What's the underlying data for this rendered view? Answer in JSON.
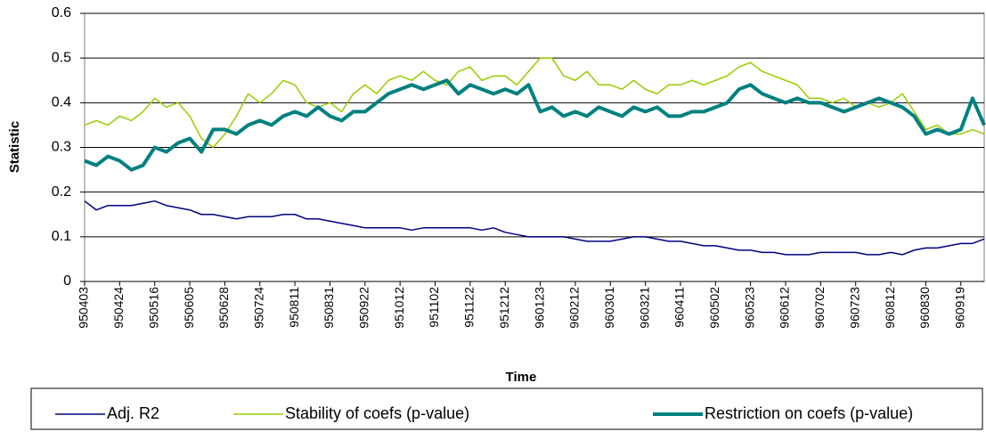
{
  "chart_data": {
    "type": "line",
    "x_label": "Time",
    "y_label": "Statistic",
    "categories": [
      "950403",
      null,
      null,
      "950424",
      null,
      null,
      "950516",
      null,
      null,
      "950605",
      null,
      null,
      "950628",
      null,
      null,
      "950724",
      null,
      null,
      "950811",
      null,
      null,
      "950831",
      null,
      null,
      "950922",
      null,
      null,
      "951012",
      null,
      null,
      "951102",
      null,
      null,
      "951122",
      null,
      null,
      "951212",
      null,
      null,
      "960123",
      null,
      null,
      "960212",
      null,
      null,
      "960301",
      null,
      null,
      "960321",
      null,
      null,
      "960411",
      null,
      null,
      "960502",
      null,
      null,
      "960523",
      null,
      null,
      "960612",
      null,
      null,
      "960702",
      null,
      null,
      "960723",
      null,
      null,
      "960812",
      null,
      null,
      "960830",
      null,
      null,
      "960919",
      null,
      null
    ],
    "series": [
      {
        "name": "Adj. R2",
        "color": "#000080",
        "values": [
          0.18,
          0.16,
          0.17,
          0.17,
          0.17,
          0.175,
          0.18,
          0.17,
          0.165,
          0.16,
          0.15,
          0.15,
          0.145,
          0.14,
          0.145,
          0.145,
          0.145,
          0.15,
          0.15,
          0.14,
          0.14,
          0.135,
          0.13,
          0.125,
          0.12,
          0.12,
          0.12,
          0.12,
          0.115,
          0.12,
          0.12,
          0.12,
          0.12,
          0.12,
          0.115,
          0.12,
          0.11,
          0.105,
          0.1,
          0.1,
          0.1,
          0.1,
          0.095,
          0.09,
          0.09,
          0.09,
          0.095,
          0.1,
          0.1,
          0.095,
          0.09,
          0.09,
          0.085,
          0.08,
          0.08,
          0.075,
          0.07,
          0.07,
          0.065,
          0.065,
          0.06,
          0.06,
          0.06,
          0.065,
          0.065,
          0.065,
          0.065,
          0.06,
          0.06,
          0.065,
          0.06,
          0.07,
          0.075,
          0.075,
          0.08,
          0.085,
          0.085,
          0.095
        ]
      },
      {
        "name": "Stability of coefs (p-value)",
        "color": "#99cc00",
        "values": [
          0.35,
          0.36,
          0.35,
          0.37,
          0.36,
          0.38,
          0.41,
          0.39,
          0.4,
          0.37,
          0.32,
          0.3,
          0.33,
          0.37,
          0.42,
          0.4,
          0.42,
          0.45,
          0.44,
          0.4,
          0.39,
          0.4,
          0.38,
          0.42,
          0.44,
          0.42,
          0.45,
          0.46,
          0.45,
          0.47,
          0.45,
          0.44,
          0.47,
          0.48,
          0.45,
          0.46,
          0.46,
          0.44,
          0.47,
          0.5,
          0.5,
          0.46,
          0.45,
          0.47,
          0.44,
          0.44,
          0.43,
          0.45,
          0.43,
          0.42,
          0.44,
          0.44,
          0.45,
          0.44,
          0.45,
          0.46,
          0.48,
          0.49,
          0.47,
          0.46,
          0.45,
          0.44,
          0.41,
          0.41,
          0.4,
          0.41,
          0.39,
          0.4,
          0.39,
          0.4,
          0.42,
          0.38,
          0.34,
          0.35,
          0.33,
          0.33,
          0.34,
          0.33
        ]
      },
      {
        "name": "Restriction on coefs (p-value)",
        "color": "#008080",
        "values": [
          0.27,
          0.26,
          0.28,
          0.27,
          0.25,
          0.26,
          0.3,
          0.29,
          0.31,
          0.32,
          0.29,
          0.34,
          0.34,
          0.33,
          0.35,
          0.36,
          0.35,
          0.37,
          0.38,
          0.37,
          0.39,
          0.37,
          0.36,
          0.38,
          0.38,
          0.4,
          0.42,
          0.43,
          0.44,
          0.43,
          0.44,
          0.45,
          0.42,
          0.44,
          0.43,
          0.42,
          0.43,
          0.42,
          0.44,
          0.38,
          0.39,
          0.37,
          0.38,
          0.37,
          0.39,
          0.38,
          0.37,
          0.39,
          0.38,
          0.39,
          0.37,
          0.37,
          0.38,
          0.38,
          0.39,
          0.4,
          0.43,
          0.44,
          0.42,
          0.41,
          0.4,
          0.41,
          0.4,
          0.4,
          0.39,
          0.38,
          0.39,
          0.4,
          0.41,
          0.4,
          0.39,
          0.37,
          0.33,
          0.34,
          0.33,
          0.34,
          0.41,
          0.35
        ]
      }
    ],
    "ylim": [
      0,
      0.6
    ],
    "yticks": [
      0,
      0.1,
      0.2,
      0.3,
      0.4,
      0.5,
      0.6
    ],
    "grid": true,
    "legend": "bottom"
  }
}
